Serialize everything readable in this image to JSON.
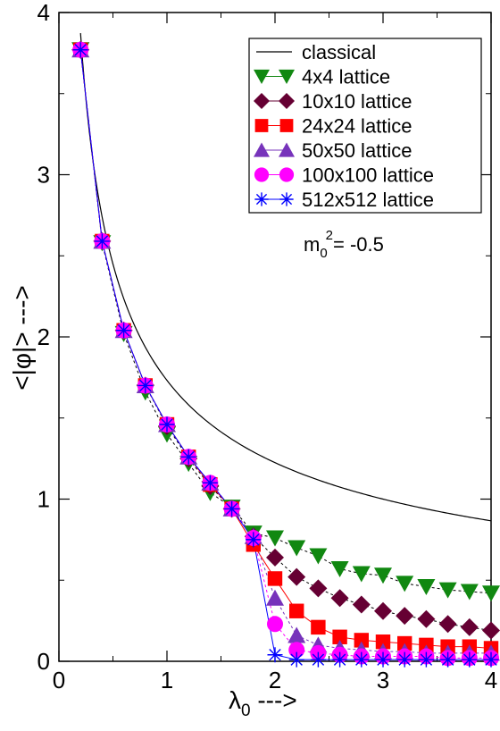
{
  "chart_data": {
    "type": "line",
    "xlabel": {
      "main": "λ",
      "sub": "0",
      "arrow": " --->"
    },
    "ylabel": "<|φ|> --->",
    "xlim": [
      0,
      4
    ],
    "ylim": [
      0,
      4
    ],
    "x_ticks": [
      "0",
      "1",
      "2",
      "3",
      "4"
    ],
    "y_ticks": [
      "0",
      "1",
      "2",
      "3",
      "4"
    ],
    "legend_position": "top-right",
    "annotation": {
      "base": "m",
      "sub": "0",
      "sup": "2",
      "rest": "= -0.5"
    },
    "classical": {
      "name": "classical",
      "color": "#000000"
    },
    "series": [
      {
        "name": "4x4 lattice",
        "marker": "triangle-down",
        "color": "#118811",
        "x": [
          0.2,
          0.4,
          0.6,
          0.8,
          1.0,
          1.2,
          1.4,
          1.6,
          1.8,
          2.0,
          2.2,
          2.4,
          2.6,
          2.8,
          3.0,
          3.2,
          3.4,
          3.6,
          3.8,
          4.0
        ],
        "y": [
          3.77,
          2.58,
          2.02,
          1.66,
          1.4,
          1.22,
          1.04,
          0.95,
          0.79,
          0.76,
          0.7,
          0.65,
          0.57,
          0.54,
          0.53,
          0.48,
          0.46,
          0.44,
          0.43,
          0.42
        ]
      },
      {
        "name": "10x10 lattice",
        "marker": "diamond",
        "color": "#660033",
        "x": [
          0.2,
          0.4,
          0.6,
          0.8,
          1.0,
          1.2,
          1.4,
          1.6,
          1.8,
          2.0,
          2.2,
          2.4,
          2.6,
          2.8,
          3.0,
          3.2,
          3.4,
          3.6,
          3.8,
          4.0
        ],
        "y": [
          3.77,
          2.59,
          2.04,
          1.7,
          1.45,
          1.25,
          1.08,
          0.94,
          0.77,
          0.64,
          0.52,
          0.45,
          0.39,
          0.35,
          0.31,
          0.28,
          0.26,
          0.23,
          0.21,
          0.19
        ]
      },
      {
        "name": "24x24 lattice",
        "marker": "square",
        "color": "#ff0000",
        "x": [
          0.2,
          0.4,
          0.6,
          0.8,
          1.0,
          1.2,
          1.4,
          1.6,
          1.8,
          2.0,
          2.2,
          2.4,
          2.6,
          2.8,
          3.0,
          3.2,
          3.4,
          3.6,
          3.8,
          4.0
        ],
        "y": [
          3.77,
          2.59,
          2.04,
          1.7,
          1.46,
          1.26,
          1.09,
          0.94,
          0.72,
          0.51,
          0.31,
          0.21,
          0.15,
          0.13,
          0.12,
          0.11,
          0.1,
          0.09,
          0.09,
          0.08
        ]
      },
      {
        "name": "50x50 lattice",
        "marker": "triangle-up",
        "color": "#7733bb",
        "x": [
          0.2,
          0.4,
          0.6,
          0.8,
          1.0,
          1.2,
          1.4,
          1.6,
          1.8,
          2.0,
          2.2,
          2.4,
          2.6,
          2.8,
          3.0,
          3.2,
          3.4,
          3.6,
          3.8,
          4.0
        ],
        "y": [
          3.77,
          2.59,
          2.04,
          1.7,
          1.46,
          1.26,
          1.1,
          0.94,
          0.77,
          0.39,
          0.16,
          0.1,
          0.08,
          0.07,
          0.06,
          0.06,
          0.05,
          0.05,
          0.05,
          0.05
        ]
      },
      {
        "name": "100x100 lattice",
        "marker": "circle",
        "color": "#ff00ff",
        "x": [
          0.2,
          0.4,
          0.6,
          0.8,
          1.0,
          1.2,
          1.4,
          1.6,
          1.8,
          2.0,
          2.2,
          2.4,
          2.6,
          2.8,
          3.0,
          3.2,
          3.4,
          3.6,
          3.8,
          4.0
        ],
        "y": [
          3.77,
          2.59,
          2.04,
          1.7,
          1.46,
          1.26,
          1.1,
          0.94,
          0.76,
          0.23,
          0.07,
          0.05,
          0.04,
          0.03,
          0.03,
          0.03,
          0.03,
          0.02,
          0.02,
          0.02
        ]
      },
      {
        "name": "512x512 lattice",
        "marker": "star",
        "color": "#0000ff",
        "x": [
          0.2,
          0.4,
          0.6,
          0.8,
          1.0,
          1.2,
          1.4,
          1.6,
          1.8,
          2.0,
          2.2,
          2.4,
          2.6,
          2.8,
          3.0,
          3.2,
          3.4,
          3.6,
          3.8,
          4.0
        ],
        "y": [
          3.77,
          2.59,
          2.04,
          1.7,
          1.46,
          1.26,
          1.1,
          0.94,
          0.75,
          0.04,
          0.01,
          0.01,
          0.01,
          0.01,
          0.01,
          0.01,
          0.01,
          0.01,
          0.01,
          0.01
        ]
      }
    ]
  }
}
